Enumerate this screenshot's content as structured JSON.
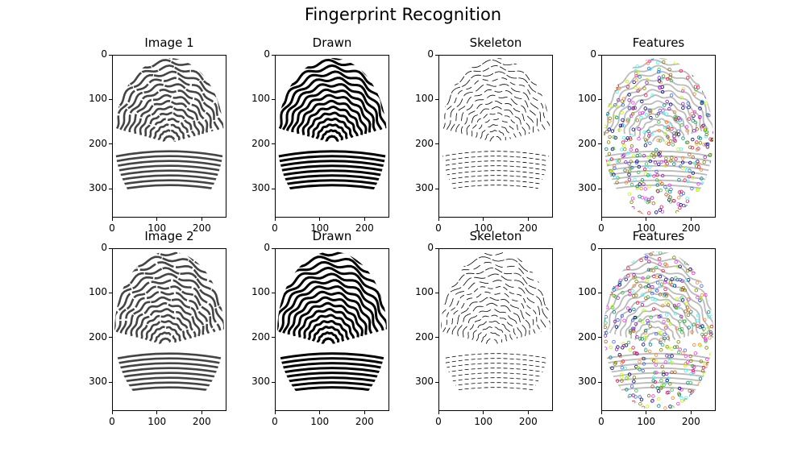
{
  "figure": {
    "suptitle": "Fingerprint Recognition"
  },
  "chart_data": [
    {
      "type": "image",
      "title": "Image 1",
      "render": "gray",
      "seed": 11,
      "core": [
        150,
        245
      ],
      "xticks": [
        0,
        100,
        200
      ],
      "yticks": [
        0,
        100,
        200,
        300
      ],
      "xlim": [
        0,
        255
      ],
      "ylim": [
        364,
        0
      ]
    },
    {
      "type": "image",
      "title": "Drawn",
      "render": "binary",
      "seed": 11,
      "core": [
        150,
        245
      ],
      "xticks": [
        0,
        100,
        200
      ],
      "yticks": [
        0,
        100,
        200,
        300
      ],
      "xlim": [
        0,
        255
      ],
      "ylim": [
        364,
        0
      ]
    },
    {
      "type": "image",
      "title": "Skeleton",
      "render": "skeleton",
      "seed": 11,
      "core": [
        150,
        245
      ],
      "xticks": [
        0,
        100,
        200
      ],
      "yticks": [
        0,
        100,
        200,
        300
      ],
      "xlim": [
        0,
        255
      ],
      "ylim": [
        364,
        0
      ]
    },
    {
      "type": "image",
      "title": "Features",
      "render": "features",
      "seed": 11,
      "core": [
        150,
        245
      ],
      "xticks": [
        0,
        100,
        200
      ],
      "yticks": [
        0,
        100,
        200,
        300
      ],
      "xlim": [
        0,
        255
      ],
      "ylim": [
        364,
        0
      ]
    },
    {
      "type": "image",
      "title": "Image 2",
      "render": "gray",
      "seed": 29,
      "core": [
        140,
        270
      ],
      "xticks": [
        0,
        100,
        200
      ],
      "yticks": [
        0,
        100,
        200,
        300
      ],
      "xlim": [
        0,
        255
      ],
      "ylim": [
        364,
        0
      ]
    },
    {
      "type": "image",
      "title": "Drawn",
      "render": "binary",
      "seed": 29,
      "core": [
        140,
        270
      ],
      "xticks": [
        0,
        100,
        200
      ],
      "yticks": [
        0,
        100,
        200,
        300
      ],
      "xlim": [
        0,
        255
      ],
      "ylim": [
        364,
        0
      ]
    },
    {
      "type": "image",
      "title": "Skeleton",
      "render": "skeleton",
      "seed": 29,
      "core": [
        140,
        270
      ],
      "xticks": [
        0,
        100,
        200
      ],
      "yticks": [
        0,
        100,
        200,
        300
      ],
      "xlim": [
        0,
        255
      ],
      "ylim": [
        364,
        0
      ]
    },
    {
      "type": "image",
      "title": "Features",
      "render": "features",
      "seed": 29,
      "core": [
        140,
        270
      ],
      "xticks": [
        0,
        100,
        200
      ],
      "yticks": [
        0,
        100,
        200,
        300
      ],
      "xlim": [
        0,
        255
      ],
      "ylim": [
        364,
        0
      ]
    }
  ],
  "feature_colors": [
    "#e6194b",
    "#3cb44b",
    "#4363d8",
    "#f58231",
    "#911eb4",
    "#46f0f0",
    "#f032e6",
    "#bcf60c",
    "#008080",
    "#9a6324",
    "#808000",
    "#000075"
  ]
}
